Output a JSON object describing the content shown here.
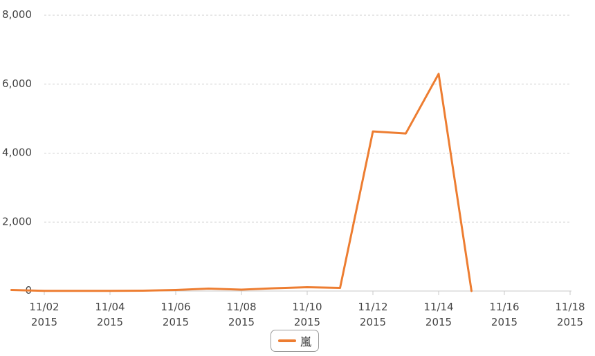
{
  "chart_data": {
    "type": "line",
    "x": [
      "11/01/2015",
      "11/02/2015",
      "11/03/2015",
      "11/04/2015",
      "11/05/2015",
      "11/06/2015",
      "11/07/2015",
      "11/08/2015",
      "11/09/2015",
      "11/10/2015",
      "11/11/2015",
      "11/12/2015",
      "11/13/2015",
      "11/14/2015",
      "11/15/2015"
    ],
    "series": [
      {
        "name": "嵐",
        "color": "#ED7D31",
        "values": [
          30,
          5,
          5,
          5,
          10,
          30,
          70,
          40,
          80,
          110,
          90,
          4630,
          4570,
          6300,
          0
        ]
      }
    ],
    "xticks": [
      {
        "date": "11/02",
        "year": "2015"
      },
      {
        "date": "11/04",
        "year": "2015"
      },
      {
        "date": "11/06",
        "year": "2015"
      },
      {
        "date": "11/08",
        "year": "2015"
      },
      {
        "date": "11/10",
        "year": "2015"
      },
      {
        "date": "11/12",
        "year": "2015"
      },
      {
        "date": "11/14",
        "year": "2015"
      },
      {
        "date": "11/16",
        "year": "2015"
      },
      {
        "date": "11/18",
        "year": "2015"
      }
    ],
    "yticks": [
      "0",
      "2,000",
      "4,000",
      "6,000",
      "8,000"
    ],
    "ylim": [
      0,
      8000
    ],
    "title": "",
    "xlabel": "",
    "ylabel": "",
    "grid": true,
    "legend": "bottom-center"
  }
}
